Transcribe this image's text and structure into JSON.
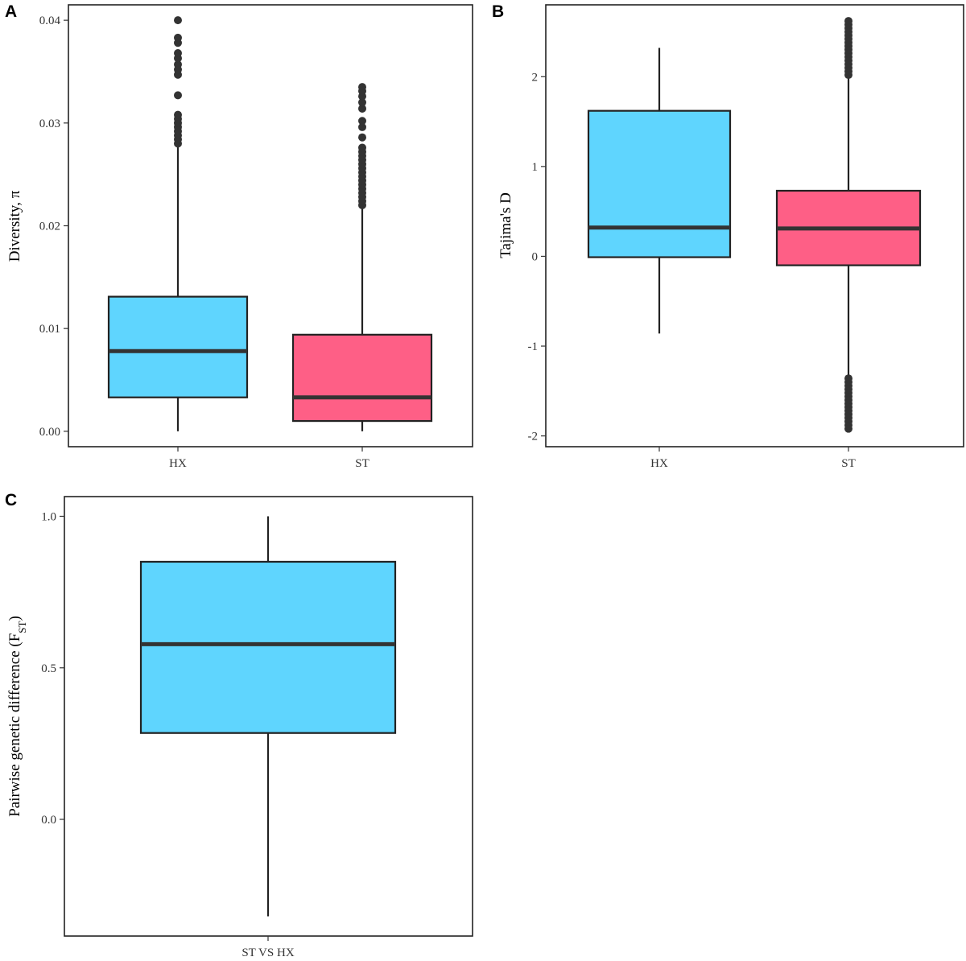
{
  "colors": {
    "box_primary": "#5fd5fe",
    "box_secondary": "#fe5f86",
    "ink": "#333333"
  },
  "panels": [
    {
      "letter": "A"
    },
    {
      "letter": "B"
    },
    {
      "letter": "C"
    }
  ],
  "chart_data": [
    {
      "panel": "A",
      "type": "box",
      "title": "",
      "xlabel": "",
      "ylabel": "Diversity, π",
      "ylim": [
        -0.0015,
        0.0415
      ],
      "yticks": [
        "0.00",
        "0.01",
        "0.02",
        "0.03",
        "0.04"
      ],
      "ytick_values": [
        0,
        0.01,
        0.02,
        0.03,
        0.04
      ],
      "categories": [
        "HX",
        "ST"
      ],
      "boxes": [
        {
          "category": "HX",
          "color": "#5fd5fe",
          "whisker_low": 0.0,
          "q1": 0.0033,
          "median": 0.0078,
          "q3": 0.0131,
          "whisker_high": 0.0278,
          "outliers": [
            0.028,
            0.0284,
            0.0288,
            0.0292,
            0.0296,
            0.03,
            0.0304,
            0.0308,
            0.0327,
            0.0347,
            0.0352,
            0.0357,
            0.0363,
            0.0368,
            0.0378,
            0.0383,
            0.04
          ]
        },
        {
          "category": "ST",
          "color": "#fe5f86",
          "whisker_low": 0.0,
          "q1": 0.001,
          "median": 0.0033,
          "q3": 0.0094,
          "whisker_high": 0.0218,
          "outliers": [
            0.022,
            0.0224,
            0.0228,
            0.0232,
            0.0236,
            0.024,
            0.0244,
            0.0248,
            0.0252,
            0.0256,
            0.026,
            0.0264,
            0.0268,
            0.0272,
            0.0276,
            0.0286,
            0.0296,
            0.0302,
            0.0314,
            0.032,
            0.0326,
            0.0331,
            0.0335
          ]
        }
      ]
    },
    {
      "panel": "B",
      "type": "box",
      "title": "",
      "xlabel": "",
      "ylabel": "Tajima's D",
      "ylim": [
        -2.12,
        2.8
      ],
      "yticks": [
        "-2",
        "-1",
        "0",
        "1",
        "2"
      ],
      "ytick_values": [
        -2,
        -1,
        0,
        1,
        2
      ],
      "categories": [
        "HX",
        "ST"
      ],
      "boxes": [
        {
          "category": "HX",
          "color": "#5fd5fe",
          "whisker_low": -0.86,
          "q1": -0.01,
          "median": 0.32,
          "q3": 1.62,
          "whisker_high": 2.32,
          "outliers": []
        },
        {
          "category": "ST",
          "color": "#fe5f86",
          "whisker_low": -1.34,
          "q1": -0.1,
          "median": 0.31,
          "q3": 0.73,
          "whisker_high": 2.0,
          "outliers": [
            -1.92,
            -1.88,
            -1.84,
            -1.8,
            -1.76,
            -1.72,
            -1.68,
            -1.64,
            -1.6,
            -1.56,
            -1.52,
            -1.48,
            -1.44,
            -1.4,
            -1.36,
            2.02,
            2.06,
            2.1,
            2.14,
            2.18,
            2.22,
            2.26,
            2.3,
            2.34,
            2.38,
            2.42,
            2.46,
            2.5,
            2.54,
            2.58,
            2.62
          ]
        }
      ]
    },
    {
      "panel": "C",
      "type": "box",
      "title": "",
      "xlabel": "",
      "ylabel_main": "Pairwise genetic difference (F",
      "ylabel_sub": "ST",
      "ylabel_close": ")",
      "ylim": [
        -0.385,
        1.065
      ],
      "yticks": [
        "0.0",
        "0.5",
        "1.0"
      ],
      "ytick_values": [
        0,
        0.5,
        1.0
      ],
      "categories": [
        "ST VS HX"
      ],
      "boxes": [
        {
          "category": "ST VS HX",
          "color": "#5fd5fe",
          "whisker_low": -0.32,
          "q1": 0.285,
          "median": 0.578,
          "q3": 0.85,
          "whisker_high": 1.0,
          "outliers": []
        }
      ]
    }
  ]
}
